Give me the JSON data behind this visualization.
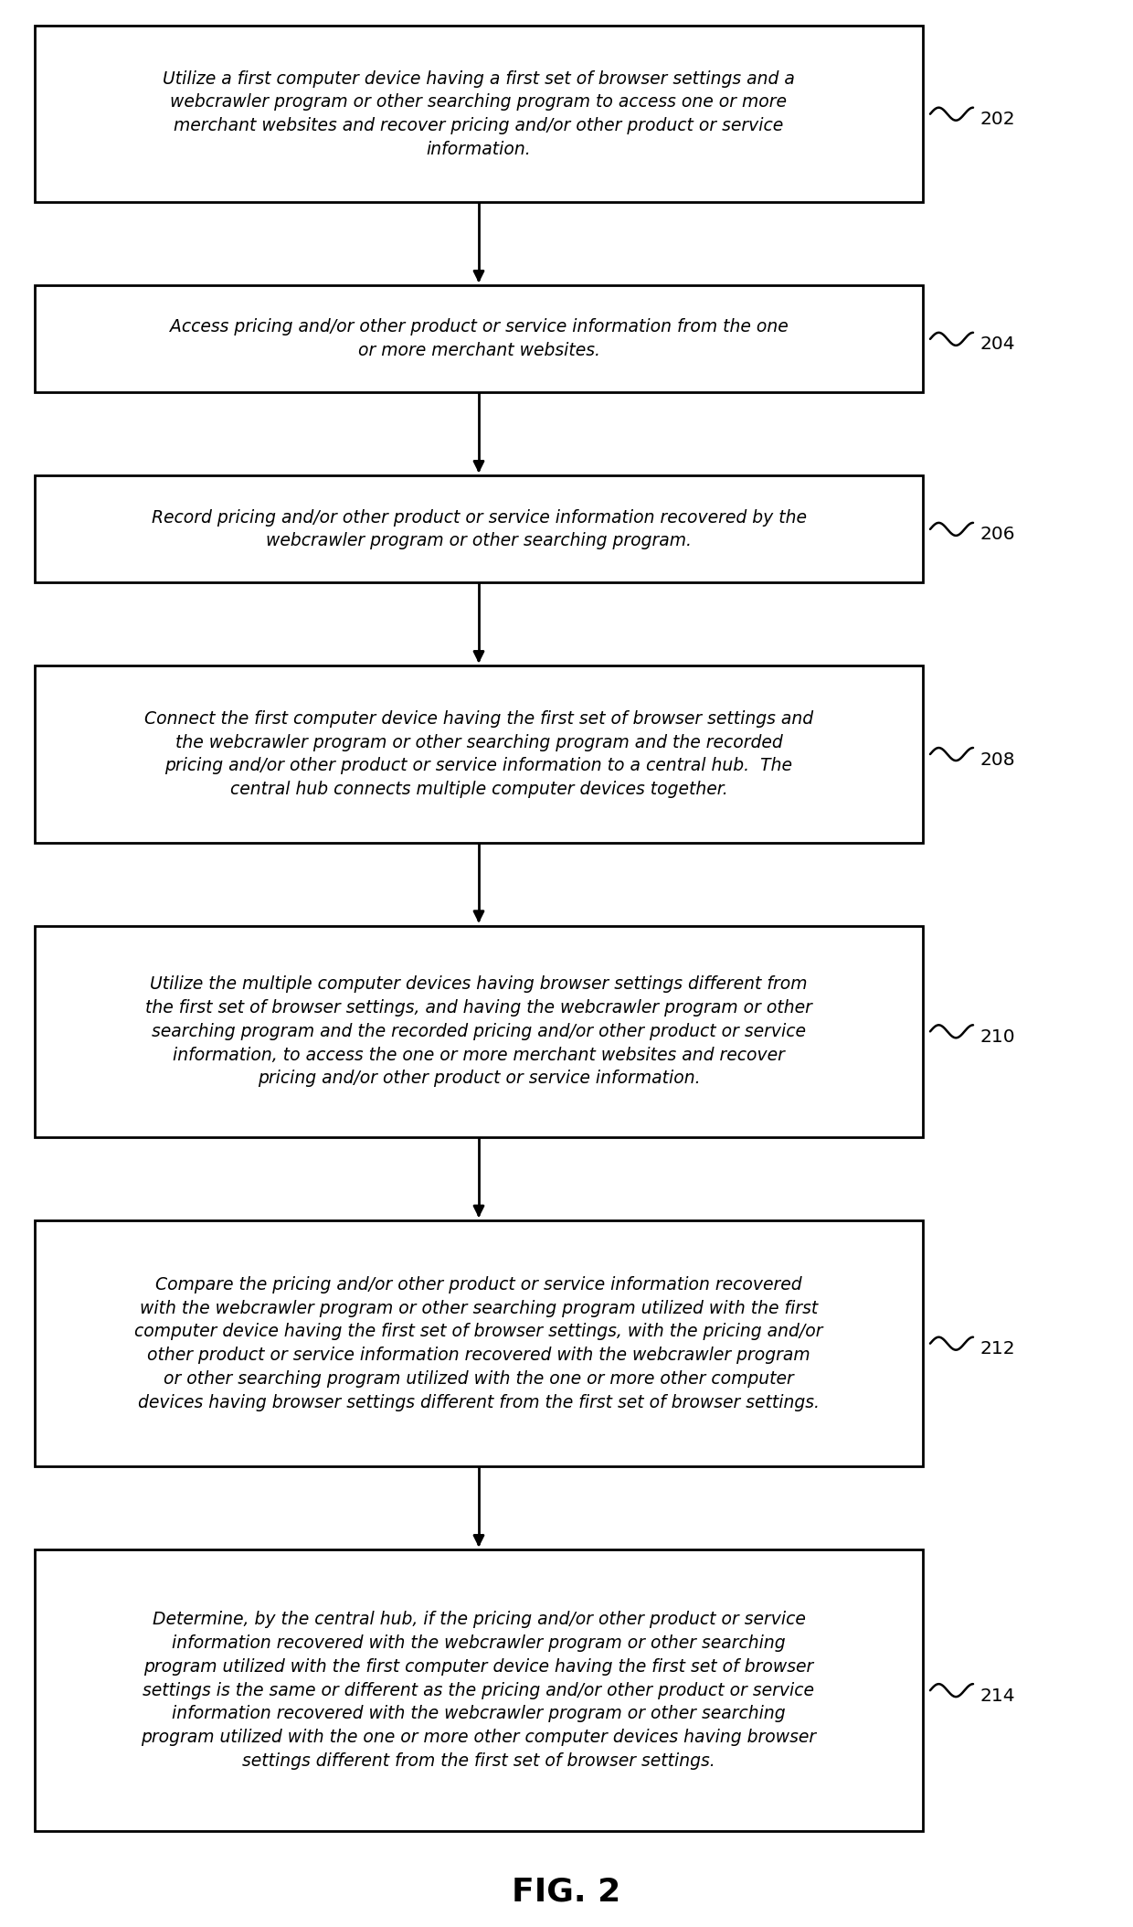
{
  "title": "FIG. 2",
  "background_color": "#ffffff",
  "box_edge_color": "#000000",
  "box_fill_color": "#ffffff",
  "text_color": "#000000",
  "arrow_color": "#000000",
  "fig_width": 12.4,
  "fig_height": 21.08,
  "dpi": 100,
  "steps": [
    {
      "ref": "202",
      "label": "Utilize a first computer device having a first set of browser settings and a\nwebcrawler program or other searching program to access one or more\nmerchant websites and recover pricing and/or other product or service\ninformation.",
      "lines": 4
    },
    {
      "ref": "204",
      "label": "Access pricing and/or other product or service information from the one\nor more merchant websites.",
      "lines": 2
    },
    {
      "ref": "206",
      "label": "Record pricing and/or other product or service information recovered by the\nwebcrawler program or other searching program.",
      "lines": 2
    },
    {
      "ref": "208",
      "label": "Connect the first computer device having the first set of browser settings and\nthe webcrawler program or other searching program and the recorded\npricing and/or other product or service information to a central hub.  The\ncentral hub connects multiple computer devices together.",
      "lines": 4
    },
    {
      "ref": "210",
      "label": "Utilize the multiple computer devices having browser settings different from\nthe first set of browser settings, and having the webcrawler program or other\nsearching program and the recorded pricing and/or other product or service\ninformation, to access the one or more merchant websites and recover\npricing and/or other product or service information.",
      "lines": 5
    },
    {
      "ref": "212",
      "label": "Compare the pricing and/or other product or service information recovered\nwith the webcrawler program or other searching program utilized with the first\ncomputer device having the first set of browser settings, with the pricing and/or\nother product or service information recovered with the webcrawler program\nor other searching program utilized with the one or more other computer\ndevices having browser settings different from the first set of browser settings.",
      "lines": 6
    },
    {
      "ref": "214",
      "label": "Determine, by the central hub, if the pricing and/or other product or service\ninformation recovered with the webcrawler program or other searching\nprogram utilized with the first computer device having the first set of browser\nsettings is the same or different as the pricing and/or other product or service\ninformation recovered with the webcrawler program or other searching\nprogram utilized with the one or more other computer devices having browser\nsettings different from the first set of browser settings.",
      "lines": 7
    }
  ]
}
